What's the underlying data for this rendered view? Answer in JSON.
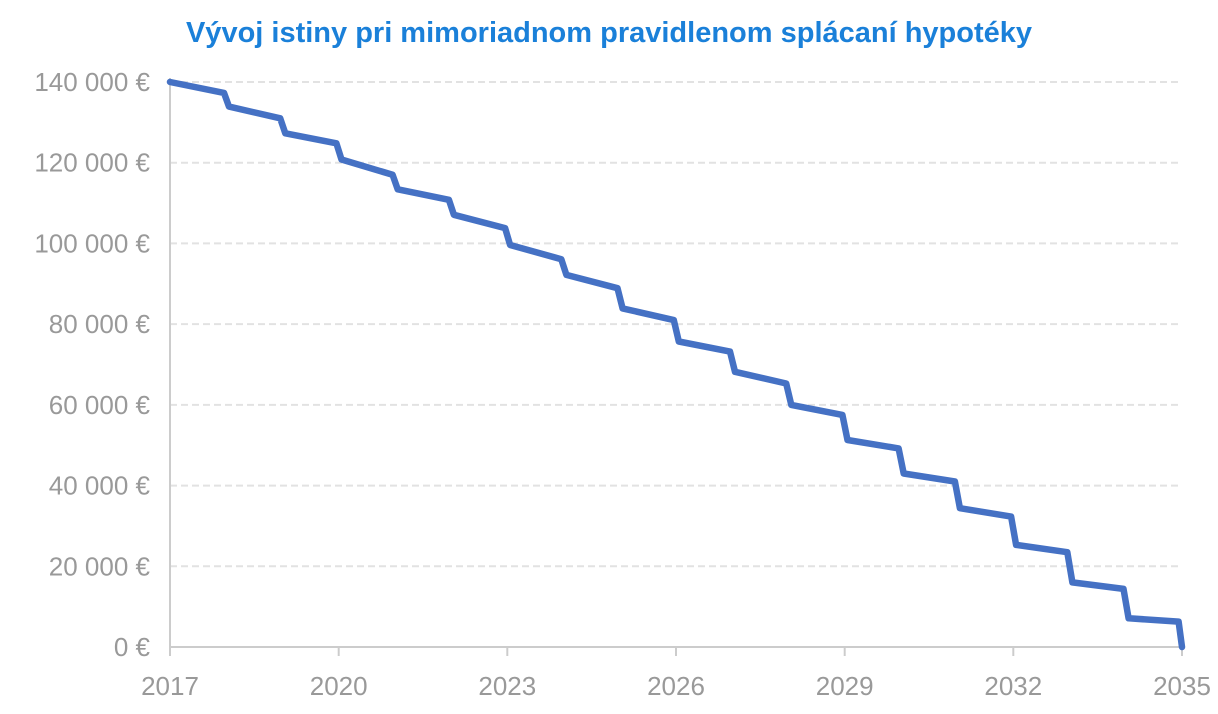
{
  "chart_data": {
    "type": "line",
    "title": "Vývoj istiny pri mimoriadnom pravidlenom splácaní hypotéky",
    "unit": "€",
    "xlim": [
      2017,
      2035
    ],
    "ylim": [
      0,
      140000
    ],
    "grid": "horizontal-dashed",
    "legend": "none",
    "x_tick_values": [
      2017,
      2020,
      2023,
      2026,
      2029,
      2032,
      2035
    ],
    "x_tick_labels": [
      "2017",
      "2020",
      "2023",
      "2026",
      "2029",
      "2032",
      "2035"
    ],
    "y_tick_values": [
      0,
      20000,
      40000,
      60000,
      80000,
      100000,
      120000,
      140000
    ],
    "y_tick_labels": [
      "0 €",
      "20 000 €",
      "40 000 €",
      "60 000 €",
      "80 000 €",
      "100 000 €",
      "120 000 €",
      "140 000 €"
    ],
    "colors": {
      "title": "#1a80d9",
      "line": "#4571c4",
      "axis_labels": "#999999",
      "axis_lines": "#cccccc",
      "gridlines": "#e2e2e2",
      "background": "#ffffff"
    },
    "series": [
      {
        "shape": "stepped-decline",
        "points": [
          [
            2017.0,
            140000
          ],
          [
            2017.96,
            137300
          ],
          [
            2018.05,
            133900
          ],
          [
            2018.96,
            131000
          ],
          [
            2019.05,
            127300
          ],
          [
            2019.96,
            124800
          ],
          [
            2020.05,
            120800
          ],
          [
            2020.96,
            117000
          ],
          [
            2021.05,
            113400
          ],
          [
            2021.96,
            110800
          ],
          [
            2022.05,
            107100
          ],
          [
            2022.96,
            103800
          ],
          [
            2023.05,
            99600
          ],
          [
            2023.96,
            96100
          ],
          [
            2024.05,
            92200
          ],
          [
            2024.96,
            88900
          ],
          [
            2025.05,
            83900
          ],
          [
            2025.96,
            81000
          ],
          [
            2026.05,
            75700
          ],
          [
            2026.96,
            73200
          ],
          [
            2027.05,
            68200
          ],
          [
            2027.96,
            65300
          ],
          [
            2028.05,
            60000
          ],
          [
            2028.96,
            57500
          ],
          [
            2029.05,
            51300
          ],
          [
            2029.96,
            49200
          ],
          [
            2030.05,
            43000
          ],
          [
            2030.96,
            41000
          ],
          [
            2031.05,
            34400
          ],
          [
            2031.96,
            32300
          ],
          [
            2032.05,
            25300
          ],
          [
            2032.96,
            23500
          ],
          [
            2033.05,
            16000
          ],
          [
            2033.96,
            14400
          ],
          [
            2034.05,
            7100
          ],
          [
            2034.94,
            6300
          ],
          [
            2035.0,
            0
          ]
        ]
      }
    ]
  }
}
